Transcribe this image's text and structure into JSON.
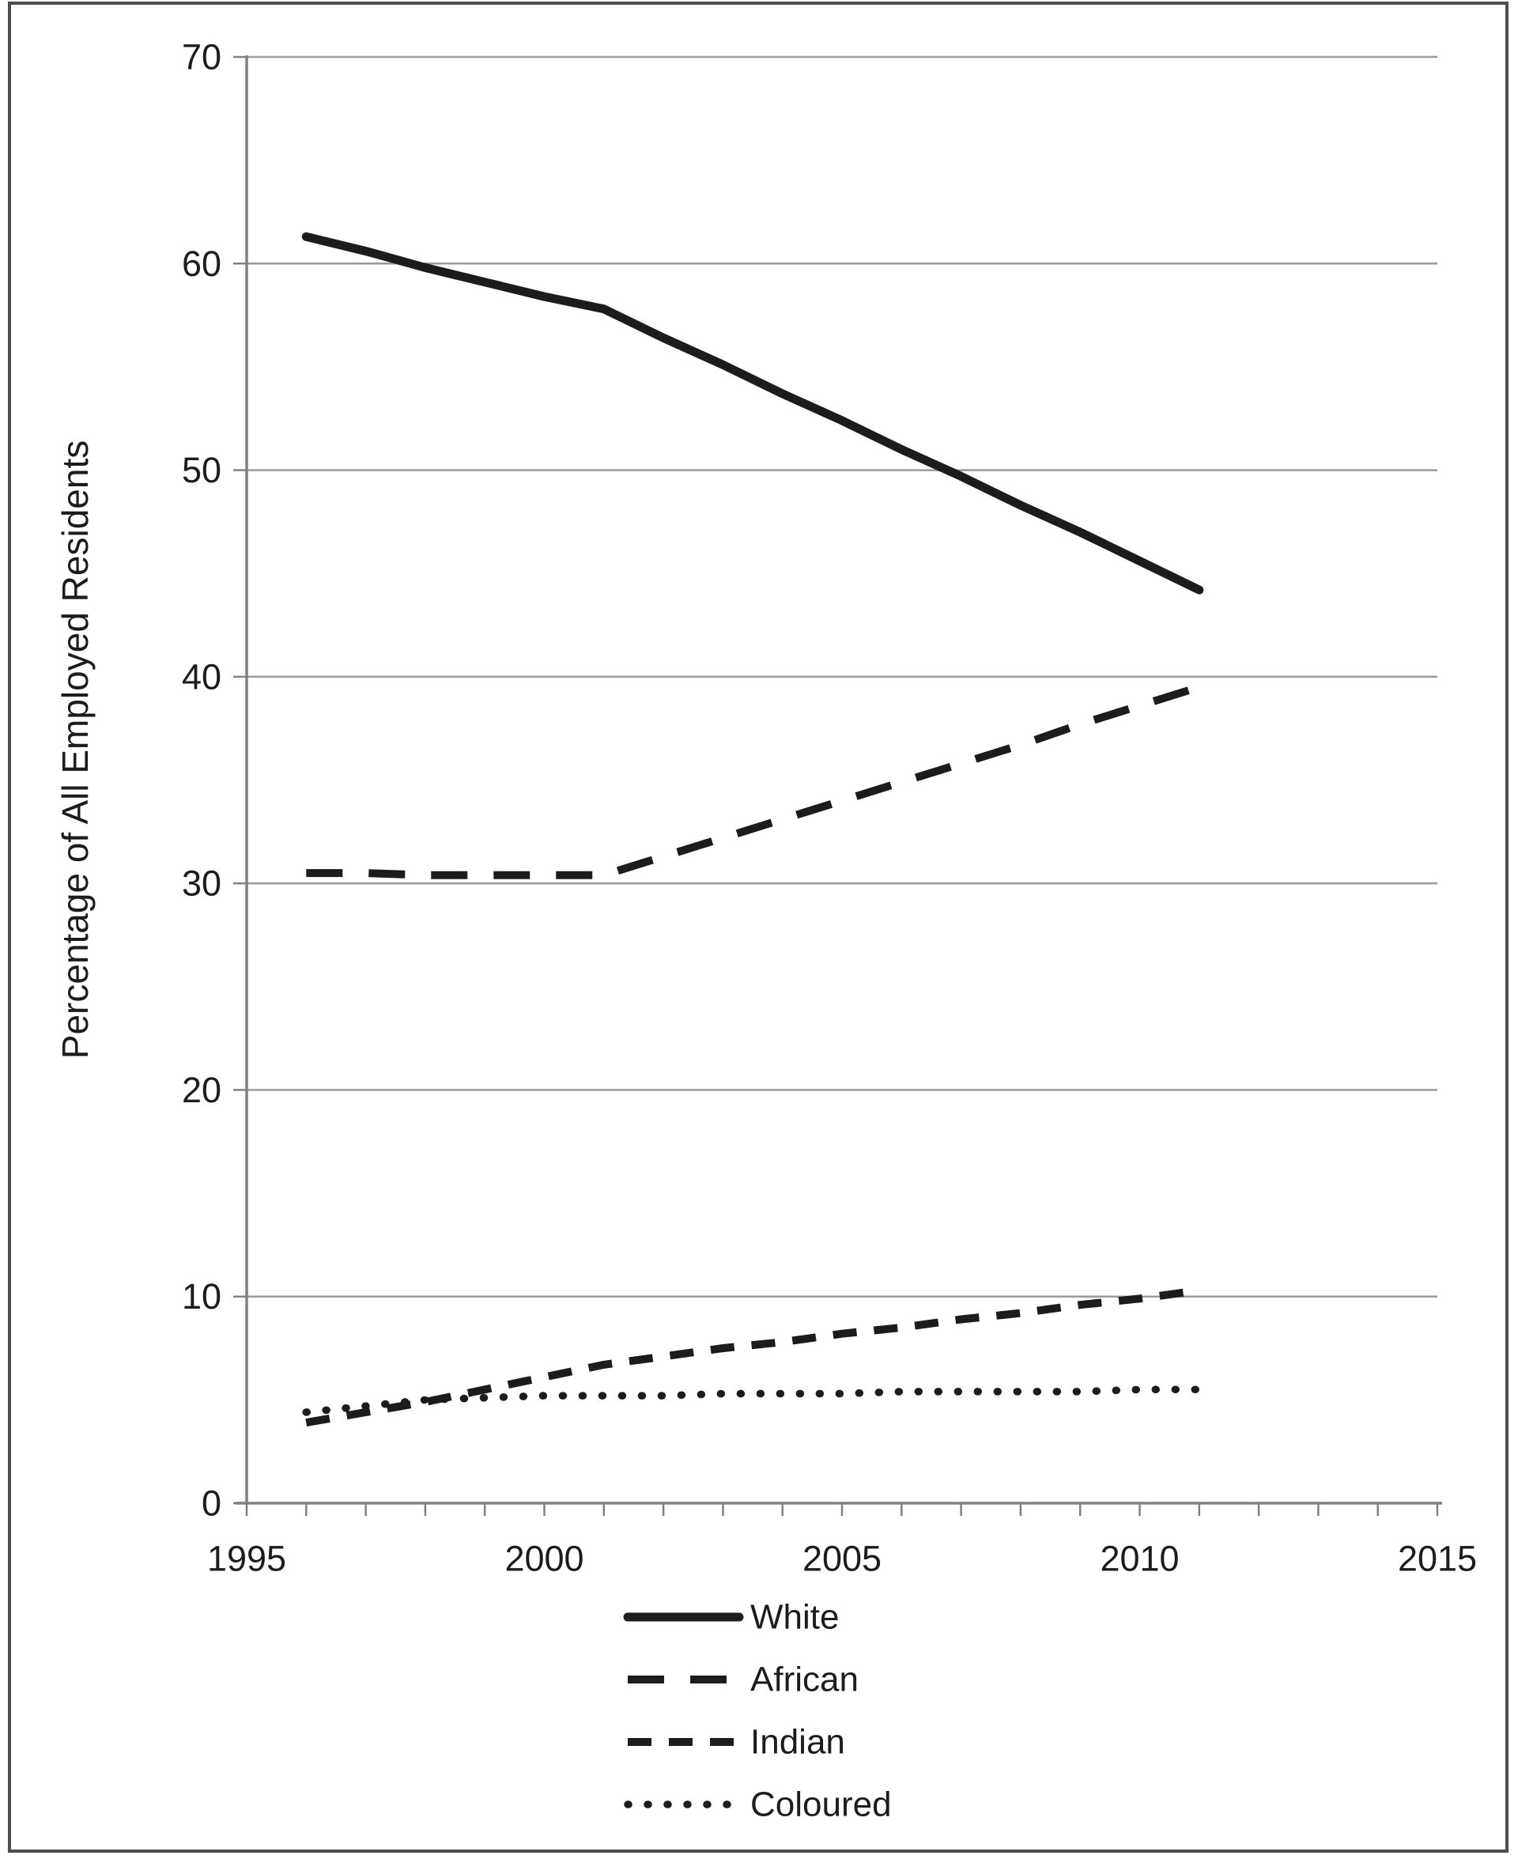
{
  "chart_data": {
    "type": "line",
    "title": "",
    "xlabel": "",
    "ylabel": "Percentage of All Employed Residents",
    "xlim": [
      1995,
      2015
    ],
    "ylim": [
      0,
      70
    ],
    "grid": "horizontal",
    "legend_position": "bottom-center",
    "y_ticks": [
      0,
      10,
      20,
      30,
      40,
      50,
      60,
      70
    ],
    "y_tick_labels": [
      "0",
      "10",
      "20",
      "30",
      "40",
      "50",
      "60",
      "70"
    ],
    "x_major_ticks": [
      1995,
      2000,
      2005,
      2010,
      2015
    ],
    "x_tick_labels": [
      "1995",
      "2000",
      "2005",
      "2010",
      "2015"
    ],
    "x_minor_tick_interval": 1,
    "x": [
      1996,
      1997,
      1998,
      1999,
      2000,
      2001,
      2002,
      2003,
      2004,
      2005,
      2006,
      2007,
      2008,
      2009,
      2010,
      2011
    ],
    "series": [
      {
        "name": "White",
        "line_style": "solid",
        "values": [
          61.3,
          60.6,
          59.8,
          59.1,
          58.4,
          57.8,
          56.4,
          55.1,
          53.7,
          52.4,
          51.0,
          49.7,
          48.3,
          47.0,
          45.6,
          44.2
        ]
      },
      {
        "name": "African",
        "line_style": "long-dash",
        "values": [
          30.5,
          30.5,
          30.4,
          30.4,
          30.4,
          30.4,
          31.3,
          32.2,
          33.1,
          34.0,
          34.9,
          35.8,
          36.7,
          37.7,
          38.6,
          39.5
        ]
      },
      {
        "name": "Indian",
        "line_style": "dash",
        "values": [
          3.9,
          4.4,
          4.9,
          5.5,
          6.1,
          6.7,
          7.1,
          7.5,
          7.8,
          8.2,
          8.5,
          8.9,
          9.2,
          9.6,
          9.9,
          10.3
        ]
      },
      {
        "name": "Coloured",
        "line_style": "dotted",
        "values": [
          4.4,
          4.7,
          5.0,
          5.1,
          5.2,
          5.2,
          5.2,
          5.3,
          5.3,
          5.3,
          5.4,
          5.4,
          5.4,
          5.4,
          5.5,
          5.5
        ]
      }
    ],
    "colors": {
      "line": "#1c1c1c",
      "grid": "#9a9a9a",
      "axis": "#808080",
      "border": "#4d4d4d",
      "background": "#ffffff",
      "text": "#1c1c1c"
    }
  }
}
